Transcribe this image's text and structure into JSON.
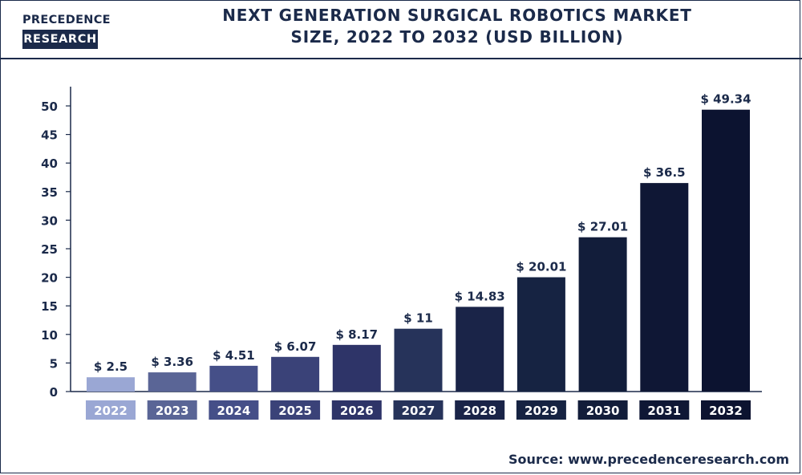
{
  "brand": {
    "logo_top": "PRECEDENCE",
    "logo_bottom": "RESEARCH"
  },
  "title_line1": "NEXT GENERATION SURGICAL ROBOTICS MARKET",
  "title_line2": "SIZE, 2022 TO 2032 (USD BILLION)",
  "source": "Source: www.precedenceresearch.com",
  "chart_data": {
    "type": "bar",
    "title": "NEXT GENERATION SURGICAL ROBOTICS MARKET SIZE, 2022 TO 2032 (USD BILLION)",
    "xlabel": "",
    "ylabel": "",
    "categories": [
      "2022",
      "2023",
      "2024",
      "2025",
      "2026",
      "2027",
      "2028",
      "2029",
      "2030",
      "2031",
      "2032"
    ],
    "values": [
      2.5,
      3.36,
      4.51,
      6.07,
      8.17,
      11,
      14.83,
      20.01,
      27.01,
      36.5,
      49.34
    ],
    "value_labels": [
      "$ 2.5",
      "$ 3.36",
      "$ 4.51",
      "$ 6.07",
      "$ 8.17",
      "$ 11",
      "$ 14.83",
      "$ 20.01",
      "$ 27.01",
      "$ 36.5",
      "$ 49.34"
    ],
    "ylim": [
      0,
      50
    ],
    "yticks": [
      "0",
      "5",
      "10",
      "15",
      "20",
      "25",
      "30",
      "35",
      "40",
      "45",
      "50"
    ],
    "grid": false,
    "legend": "none",
    "colors": [
      "#9aa7d4",
      "#5a6596",
      "#454f88",
      "#3a4278",
      "#2e3468",
      "#26335a",
      "#1a2448",
      "#162342",
      "#121d3a",
      "#0f1735",
      "#0c1330"
    ]
  }
}
